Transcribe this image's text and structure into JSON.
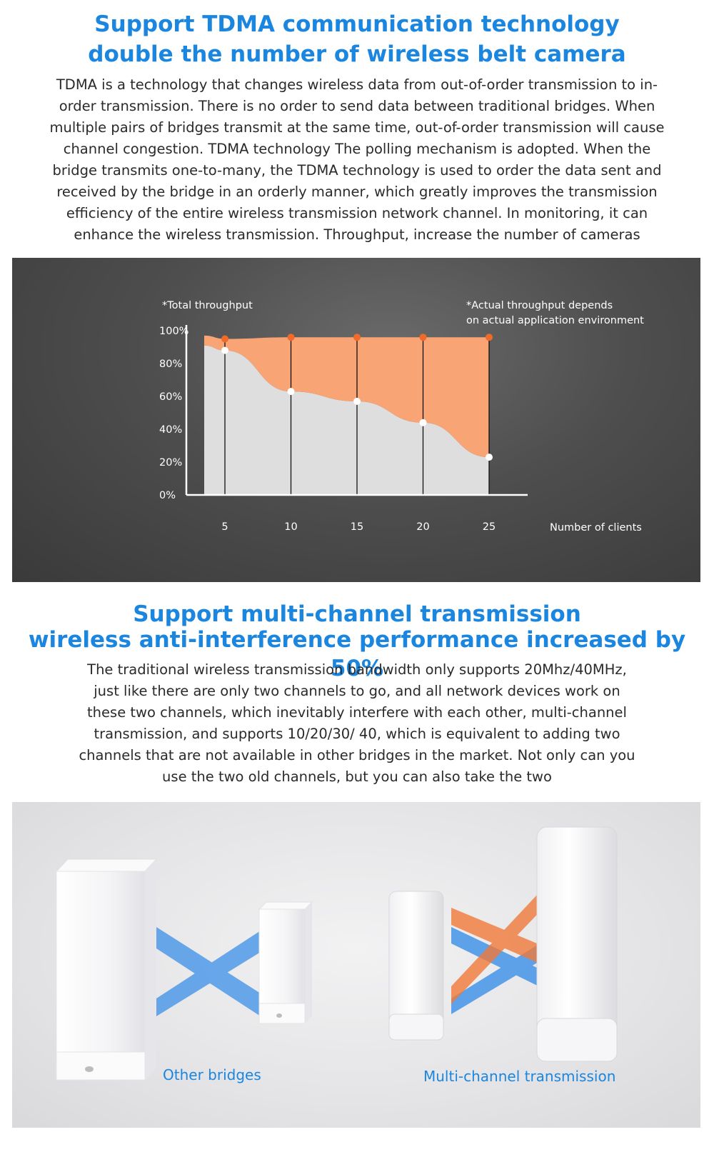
{
  "section1": {
    "title_line1": "Support TDMA communication technology",
    "title_line2": "double the number of wireless belt camera",
    "paragraph": "TDMA is a technology that changes wireless data from out-of-order transmission to in-order transmission. There is no order to send data between traditional bridges. When multiple pairs of bridges transmit at the same time, out-of-order transmission will cause channel congestion. TDMA technology The polling mechanism is adopted. When the bridge transmits one-to-many, the TDMA technology is used to order the data sent and received by the bridge in an orderly manner, which greatly improves the transmission efficiency of the entire wireless transmission network channel. In monitoring, it can enhance the wireless transmission. Throughput, increase the number of cameras"
  },
  "chart_data": {
    "type": "area",
    "ylabel": "*Total throughput",
    "xlabel": "Number of clients",
    "note_line1": "*Actual throughput depends",
    "note_line2": "on actual application environment",
    "x": [
      5,
      10,
      15,
      20,
      25
    ],
    "ylim": [
      0,
      100
    ],
    "y_ticks": [
      "100%",
      "80%",
      "60%",
      "40%",
      "20%",
      "0%"
    ],
    "y_tick_values": [
      100,
      80,
      60,
      40,
      20,
      0
    ],
    "series": [
      {
        "values": [
          95,
          96,
          96,
          96,
          96
        ],
        "color": "#f57a3a"
      },
      {
        "values": [
          88,
          63,
          57,
          44,
          23
        ],
        "color": "#ffffff"
      }
    ],
    "grid": false,
    "colors": {
      "orange_fill": "#f9a474",
      "gray_fill": "#dedede",
      "orange_dot": "#f06b2a"
    }
  },
  "section2": {
    "title_line1": "Support multi-channel transmission",
    "title_line2": "wireless anti-interference performance increased by 50%",
    "paragraph": "The traditional wireless transmission bandwidth only supports 20Mhz/40MHz, just like there are only two channels to go, and all network devices work on these two channels, which inevitably interfere with each other, multi-channel transmission, and supports 10/20/30/ 40, which is equivalent to adding two channels that are not available in other bridges in the market. Not only can you use the two old channels, but you can also take the two"
  },
  "devices": {
    "label_other": "Other bridges",
    "label_multi": "Multi-channel transmission",
    "colors": {
      "blue_beam": "#3a8fe8",
      "orange_beam": "#f07a3a"
    }
  }
}
